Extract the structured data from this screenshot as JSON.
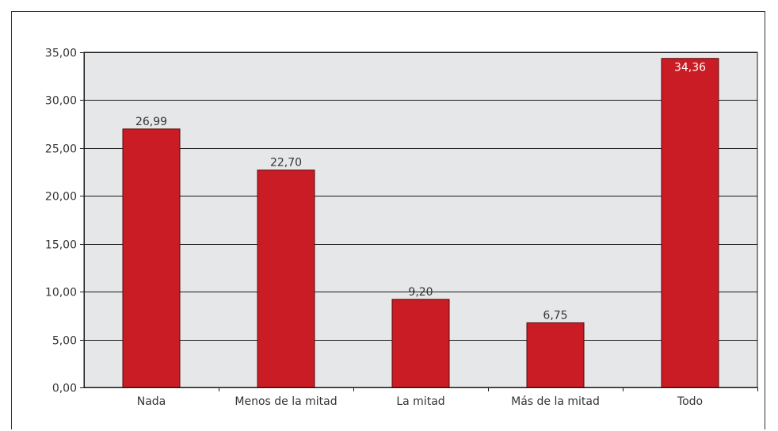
{
  "chart_data": {
    "type": "bar",
    "title": "",
    "xlabel": "",
    "ylabel": "",
    "categories": [
      "Nada",
      "Menos de la mitad",
      "La mitad",
      "Más de la mitad",
      "Todo"
    ],
    "values": [
      26.99,
      22.7,
      9.2,
      6.75,
      34.36
    ],
    "value_labels": [
      "26,99",
      "22,70",
      "9,20",
      "6,75",
      "34,36"
    ],
    "ylim": [
      0,
      35
    ],
    "yticks": [
      0,
      5,
      10,
      15,
      20,
      25,
      30,
      35
    ],
    "ytick_labels": [
      "0,00",
      "5,00",
      "10,00",
      "15,00",
      "20,00",
      "25,00",
      "30,00",
      "35,00"
    ],
    "grid": true,
    "legend": "none",
    "colors": {
      "bar": "#c91c24",
      "bar_stroke": "#5a0a0a",
      "plot_background": "#e6e7e8",
      "gridline": "#1a1a1a",
      "label_dark": "#333333",
      "label_on_bar": "#ffffff"
    }
  }
}
